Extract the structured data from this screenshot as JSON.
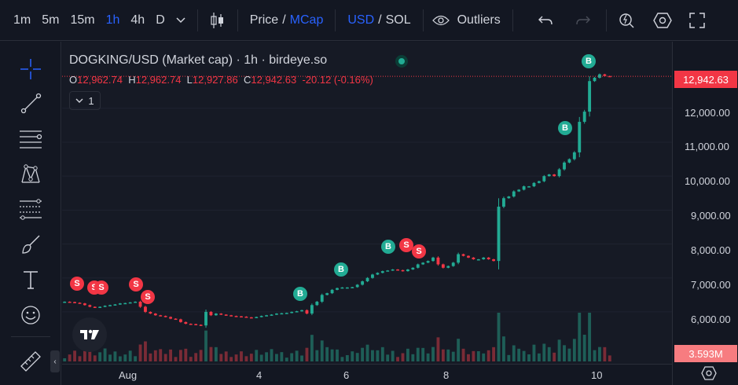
{
  "toolbar": {
    "intervals": [
      "1m",
      "5m",
      "15m",
      "1h",
      "4h",
      "D"
    ],
    "active_interval": "1h",
    "price_label": "Price",
    "slash1": "/",
    "mcap_label": "MCap",
    "usd_label": "USD",
    "slash2": "/",
    "sol_label": "SOL",
    "outliers_label": "Outliers"
  },
  "legend": {
    "title": "DOGKING/USD (Market cap) · 1h · birdeye.so",
    "o_label": "O",
    "o": "12,962.74",
    "h_label": "H",
    "h": "12,962.74",
    "l_label": "L",
    "l": "12,927.86",
    "c_label": "C",
    "c": "12,942.63",
    "change": "-20.12 (-0.16%)",
    "indicators_count": "1"
  },
  "price_axis": {
    "ticks": [
      "12,000.00",
      "11,000.00",
      "10,000.00",
      "9,000.00",
      "8,000.00",
      "7,000.00",
      "6,000.00"
    ],
    "last_price": "12,942.63",
    "volume_tag": "3.593M"
  },
  "time_axis": {
    "labels": [
      "Aug",
      "4",
      "6",
      "8",
      "10"
    ]
  },
  "markers": {
    "buy": "B",
    "sell": "S"
  },
  "colors": {
    "up": "#22ab94",
    "down": "#f23645",
    "accent": "#2962ff",
    "background": "#161a25"
  },
  "chart_data": {
    "type": "candlestick",
    "title": "DOGKING/USD (Market cap) · 1h · birdeye.so",
    "ylim": [
      5350,
      13500
    ],
    "x_ticks": [
      "Aug",
      "4",
      "6",
      "8",
      "10"
    ],
    "closes": [
      6300,
      6290,
      6270,
      6250,
      6200,
      6150,
      6130,
      6150,
      6180,
      6200,
      6220,
      6250,
      6260,
      6280,
      6300,
      6150,
      6000,
      5950,
      5900,
      5880,
      5850,
      5800,
      5780,
      5700,
      5650,
      5640,
      5620,
      5600,
      6000,
      5900,
      5950,
      5920,
      5900,
      5880,
      5870,
      5860,
      5840,
      5830,
      5850,
      5880,
      5900,
      5920,
      5950,
      5960,
      5970,
      6000,
      6020,
      6050,
      5950,
      6200,
      6300,
      6500,
      6550,
      6650,
      6700,
      6720,
      6720,
      6730,
      6800,
      6900,
      7000,
      7100,
      7150,
      7200,
      7220,
      7250,
      7230,
      7200,
      7250,
      7300,
      7400,
      7450,
      7500,
      7600,
      7400,
      7300,
      7350,
      7450,
      7700,
      7650,
      7600,
      7550,
      7550,
      7600,
      7550,
      7500,
      9100,
      9350,
      9400,
      9550,
      9600,
      9700,
      9700,
      9800,
      9850,
      10000,
      10050,
      10000,
      10200,
      10400,
      10500,
      10700,
      11600,
      11900,
      12800,
      12900,
      13000,
      12950,
      12942.63
    ],
    "volume_tag": "3.593M",
    "last_price": "12,942.63"
  }
}
